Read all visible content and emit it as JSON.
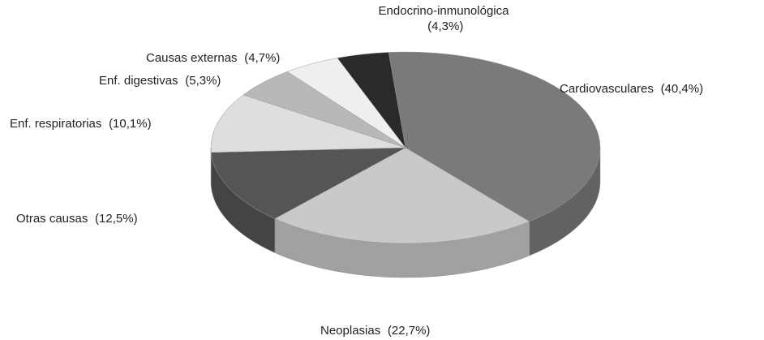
{
  "chart_data": {
    "type": "pie3d",
    "categories": [
      "Cardiovasculares",
      "Neoplasias",
      "Otras causas",
      "Enf. respiratorias",
      "Enf. digestivas",
      "Causas externas",
      "Endocrino-inmunológica"
    ],
    "values": [
      40.4,
      22.7,
      12.5,
      10.1,
      5.3,
      4.7,
      4.3
    ],
    "value_labels": [
      "(40,4%)",
      "(22,7%)",
      "(12,5%)",
      "(10,1%)",
      "(5,3%)",
      "(4,7%)",
      "(4,3%)"
    ],
    "colors": [
      "#7a7a7a",
      "#c9c9c9",
      "#555555",
      "#dedede",
      "#b8b8b8",
      "#efefef",
      "#2a2a2a"
    ]
  }
}
